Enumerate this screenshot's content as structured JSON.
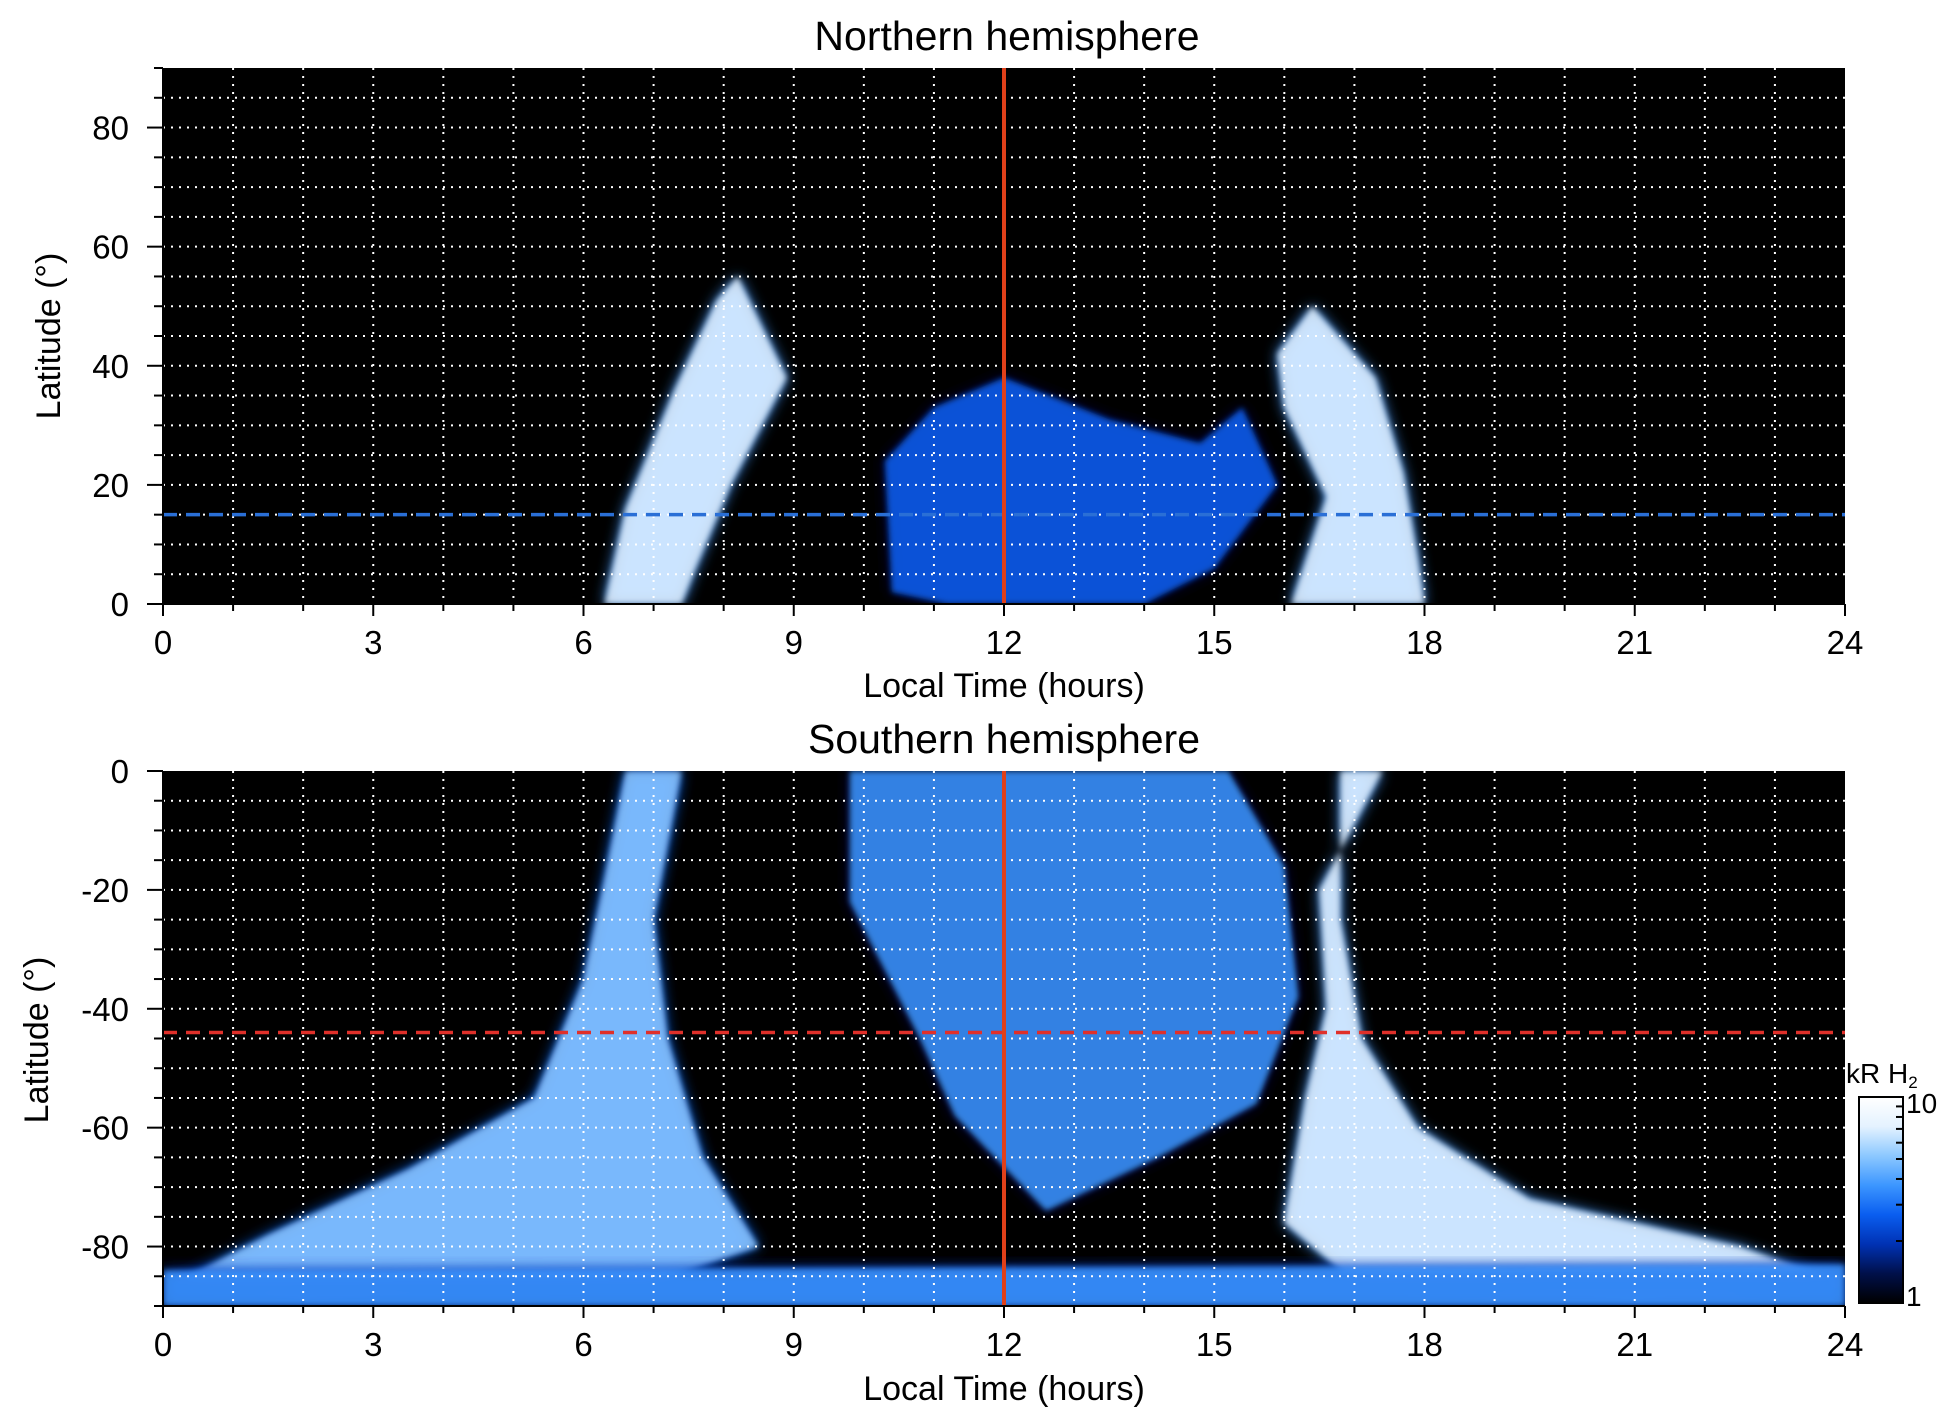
{
  "figure": {
    "colorbar": {
      "unit_prefix": "kR H",
      "unit_subscript": "2",
      "scale": "log",
      "range": [
        1,
        10
      ],
      "tick_labels": [
        "10",
        "1"
      ],
      "colors": [
        "#000000",
        "#00104a",
        "#0032b4",
        "#0a5ef0",
        "#3c96ff",
        "#8cc8ff",
        "#e4f2ff",
        "#ffffff"
      ]
    },
    "colors": {
      "plot_background": "#000000",
      "grid": "#ffffff",
      "noon_line": "#e0401a",
      "north_reference_line": "#2a6fd6",
      "south_reference_line": "#e0302a"
    }
  },
  "chart_data": [
    {
      "type": "heatmap",
      "title": "Northern hemisphere",
      "xlabel": "Local Time (hours)",
      "ylabel": "Latitude (°)",
      "xlim": [
        0,
        24
      ],
      "ylim": [
        0,
        90
      ],
      "x_ticks": [
        0,
        3,
        6,
        9,
        12,
        15,
        18,
        21,
        24
      ],
      "x_tick_labels": [
        "0",
        "3",
        "6",
        "9",
        "12",
        "15",
        "18",
        "21",
        "24"
      ],
      "y_ticks": [
        0,
        20,
        40,
        60,
        80
      ],
      "y_tick_labels": [
        "0",
        "20",
        "40",
        "60",
        "80"
      ],
      "grid": true,
      "vertical_line": {
        "x": 12,
        "style": "solid"
      },
      "horizontal_line": {
        "y": 15,
        "style": "dashed"
      },
      "emission_regions": [
        {
          "name": "dawn arc",
          "points": [
            [
              6.3,
              0
            ],
            [
              6.6,
              16
            ],
            [
              7.3,
              36
            ],
            [
              7.9,
              51
            ],
            [
              8.2,
              55
            ],
            [
              8.9,
              38
            ],
            [
              8.1,
              20
            ],
            [
              7.6,
              6
            ],
            [
              7.4,
              0
            ]
          ],
          "intensity": 9
        },
        {
          "name": "dusk arc",
          "points": [
            [
              16.1,
              0
            ],
            [
              16.6,
              18
            ],
            [
              16.0,
              33
            ],
            [
              15.9,
              42
            ],
            [
              16.4,
              50
            ],
            [
              17.3,
              38
            ],
            [
              17.7,
              22
            ],
            [
              17.9,
              8
            ],
            [
              18.0,
              0
            ]
          ],
          "intensity": 9
        },
        {
          "name": "noon patches",
          "points": [
            [
              10.4,
              2
            ],
            [
              10.3,
              24
            ],
            [
              11.0,
              33
            ],
            [
              12.0,
              38
            ],
            [
              13.5,
              31
            ],
            [
              14.8,
              27
            ],
            [
              15.4,
              33
            ],
            [
              15.9,
              20
            ],
            [
              15.0,
              6
            ],
            [
              14.0,
              0
            ],
            [
              11.2,
              0
            ]
          ],
          "intensity": 4
        }
      ]
    },
    {
      "type": "heatmap",
      "title": "Southern hemisphere",
      "xlabel": "Local Time (hours)",
      "ylabel": "Latitude (°)",
      "xlim": [
        0,
        24
      ],
      "ylim": [
        -90,
        0
      ],
      "x_ticks": [
        0,
        3,
        6,
        9,
        12,
        15,
        18,
        21,
        24
      ],
      "x_tick_labels": [
        "0",
        "3",
        "6",
        "9",
        "12",
        "15",
        "18",
        "21",
        "24"
      ],
      "y_ticks": [
        0,
        -20,
        -40,
        -60,
        -80
      ],
      "y_tick_labels": [
        "0",
        "-20",
        "-40",
        "-60",
        "-80"
      ],
      "grid": true,
      "vertical_line": {
        "x": 12,
        "style": "solid"
      },
      "horizontal_line": {
        "y": -44,
        "style": "dashed"
      },
      "emission_regions": [
        {
          "name": "dawn arc",
          "points": [
            [
              6.6,
              0
            ],
            [
              6.3,
              -18
            ],
            [
              6.0,
              -35
            ],
            [
              5.3,
              -55
            ],
            [
              3.5,
              -67
            ],
            [
              1.5,
              -78
            ],
            [
              0.2,
              -86
            ],
            [
              2.0,
              -88
            ],
            [
              7.0,
              -86
            ],
            [
              8.5,
              -80
            ],
            [
              7.7,
              -65
            ],
            [
              7.2,
              -45
            ],
            [
              7.0,
              -25
            ],
            [
              7.4,
              0
            ]
          ],
          "intensity": 7
        },
        {
          "name": "dusk arc",
          "points": [
            [
              16.8,
              0
            ],
            [
              16.8,
              -25
            ],
            [
              17.1,
              -45
            ],
            [
              17.9,
              -60
            ],
            [
              19.5,
              -72
            ],
            [
              22.5,
              -80
            ],
            [
              23.9,
              -86
            ],
            [
              21.0,
              -88
            ],
            [
              17.0,
              -86
            ],
            [
              16.0,
              -76
            ],
            [
              16.3,
              -55
            ],
            [
              16.6,
              -40
            ],
            [
              16.5,
              -20
            ],
            [
              17.4,
              0
            ]
          ],
          "intensity": 8
        },
        {
          "name": "noon patches",
          "points": [
            [
              9.8,
              0
            ],
            [
              9.8,
              -22
            ],
            [
              10.8,
              -45
            ],
            [
              11.3,
              -58
            ],
            [
              12.6,
              -74
            ],
            [
              14.2,
              -65
            ],
            [
              15.6,
              -56
            ],
            [
              16.2,
              -38
            ],
            [
              16.0,
              -16
            ],
            [
              15.2,
              0
            ]
          ],
          "intensity": 5
        },
        {
          "name": "polar band",
          "points": [
            [
              0,
              -84
            ],
            [
              24,
              -83
            ],
            [
              24,
              -90
            ],
            [
              0,
              -90
            ]
          ],
          "intensity": 6
        }
      ]
    }
  ]
}
